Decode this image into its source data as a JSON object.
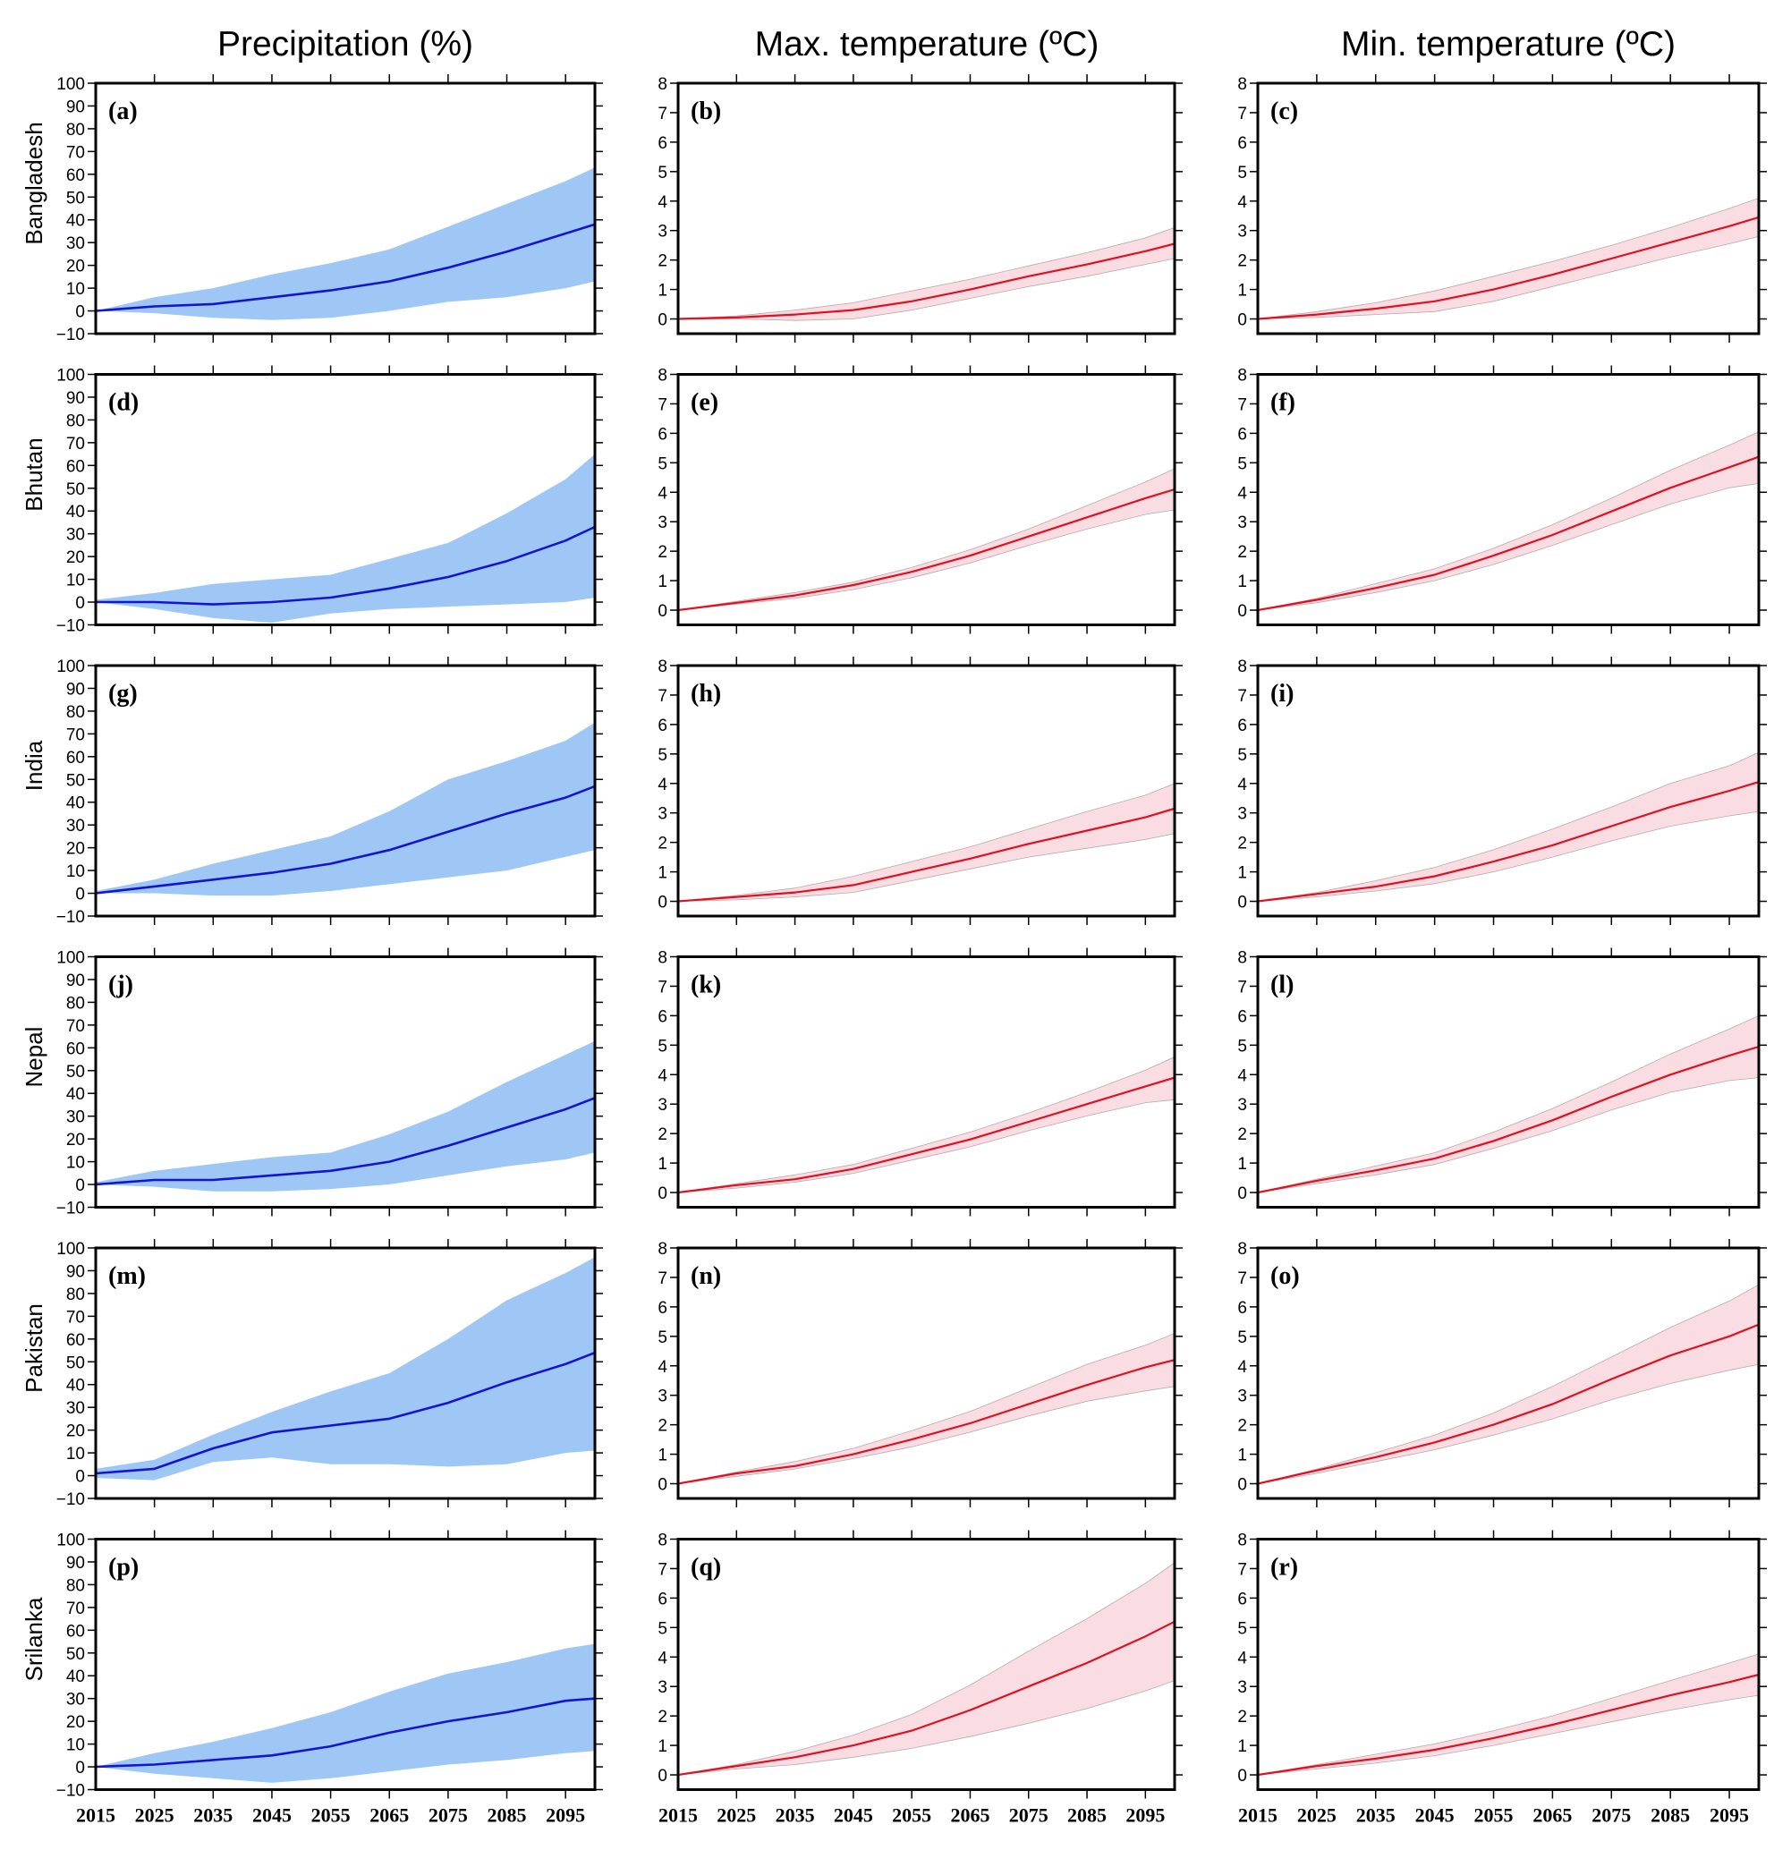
{
  "figure": {
    "column_titles": [
      "Precipitation (%)",
      "Max. temperature (ºC)",
      "Min. temperature (ºC)"
    ],
    "row_labels": [
      "Bangladesh",
      "Bhutan",
      "India",
      "Nepal",
      "Pakistan",
      "Srilanka"
    ],
    "colors": {
      "precip_fill": "#9ec7f6",
      "precip_line": "#1414d2",
      "temp_fill": "#fadce3",
      "temp_edge": "#b9a9ae",
      "temp_line": "#e01020",
      "frame": "#000000"
    }
  },
  "chart_data": {
    "type": "area",
    "layout": "6 rows x 3 columns small multiples",
    "x": [
      2015,
      2025,
      2035,
      2045,
      2055,
      2065,
      2075,
      2085,
      2095,
      2100
    ],
    "xlim": [
      2015,
      2100
    ],
    "xticks": [
      2015,
      2025,
      2035,
      2045,
      2055,
      2065,
      2075,
      2085,
      2095
    ],
    "xtick_labels": [
      "2015",
      "2025",
      "2035",
      "2045",
      "2055",
      "2065",
      "2075",
      "2085",
      "2095"
    ],
    "precip_axis": {
      "ylim": [
        -10,
        100
      ],
      "yticks": [
        -10,
        0,
        10,
        20,
        30,
        40,
        50,
        60,
        70,
        80,
        90,
        100
      ],
      "ytick_labels": [
        "−10",
        "0",
        "10",
        "20",
        "30",
        "40",
        "50",
        "60",
        "70",
        "80",
        "90",
        "100"
      ]
    },
    "temp_axis": {
      "ylim": [
        -0.5,
        8
      ],
      "yticks": [
        0,
        1,
        2,
        3,
        4,
        5,
        6,
        7,
        8
      ],
      "ytick_labels": [
        "0",
        "1",
        "2",
        "3",
        "4",
        "5",
        "6",
        "7",
        "8"
      ]
    },
    "panels": [
      {
        "label": "(a)",
        "country": "Bangladesh",
        "variable": "Precipitation (%)",
        "mean": [
          0,
          2,
          3,
          6,
          9,
          13,
          19,
          26,
          34,
          38
        ],
        "upper": [
          0,
          6,
          10,
          16,
          21,
          27,
          37,
          47,
          57,
          63
        ],
        "lower": [
          0,
          -1,
          -3,
          -4,
          -3,
          0,
          4,
          6,
          10,
          13
        ]
      },
      {
        "label": "(b)",
        "country": "Bangladesh",
        "variable": "Max. temperature (ºC)",
        "mean": [
          0,
          0.05,
          0.15,
          0.3,
          0.6,
          1.0,
          1.45,
          1.85,
          2.3,
          2.55
        ],
        "upper": [
          0,
          0.1,
          0.3,
          0.55,
          0.95,
          1.35,
          1.8,
          2.25,
          2.75,
          3.1
        ],
        "lower": [
          0,
          0,
          -0.05,
          0.0,
          0.3,
          0.7,
          1.1,
          1.45,
          1.85,
          2.05
        ]
      },
      {
        "label": "(c)",
        "country": "Bangladesh",
        "variable": "Min. temperature (ºC)",
        "mean": [
          0,
          0.15,
          0.35,
          0.6,
          1.0,
          1.5,
          2.05,
          2.6,
          3.15,
          3.45
        ],
        "upper": [
          0,
          0.25,
          0.55,
          0.95,
          1.45,
          1.95,
          2.5,
          3.1,
          3.75,
          4.1
        ],
        "lower": [
          0,
          0.05,
          0.15,
          0.25,
          0.6,
          1.1,
          1.6,
          2.1,
          2.55,
          2.8
        ]
      },
      {
        "label": "(d)",
        "country": "Bhutan",
        "variable": "Precipitation (%)",
        "mean": [
          0,
          0,
          -1,
          0,
          2,
          6,
          11,
          18,
          27,
          33
        ],
        "upper": [
          1,
          4,
          8,
          10,
          12,
          19,
          26,
          39,
          54,
          65
        ],
        "lower": [
          0,
          -3,
          -7,
          -9,
          -5,
          -3,
          -2,
          -1,
          0,
          2
        ]
      },
      {
        "label": "(e)",
        "country": "Bhutan",
        "variable": "Max. temperature (ºC)",
        "mean": [
          0,
          0.25,
          0.5,
          0.85,
          1.3,
          1.85,
          2.5,
          3.15,
          3.8,
          4.1
        ],
        "upper": [
          0,
          0.3,
          0.6,
          0.95,
          1.45,
          2.05,
          2.75,
          3.55,
          4.35,
          4.8
        ],
        "lower": [
          0,
          0.2,
          0.4,
          0.7,
          1.1,
          1.6,
          2.2,
          2.75,
          3.25,
          3.4
        ]
      },
      {
        "label": "(f)",
        "country": "Bhutan",
        "variable": "Min. temperature (ºC)",
        "mean": [
          0,
          0.35,
          0.75,
          1.2,
          1.85,
          2.55,
          3.35,
          4.15,
          4.85,
          5.2
        ],
        "upper": [
          0,
          0.4,
          0.9,
          1.4,
          2.1,
          2.9,
          3.8,
          4.75,
          5.6,
          6.05
        ],
        "lower": [
          0,
          0.25,
          0.6,
          1.0,
          1.55,
          2.2,
          2.9,
          3.6,
          4.15,
          4.3
        ]
      },
      {
        "label": "(g)",
        "country": "India",
        "variable": "Precipitation (%)",
        "mean": [
          0,
          3,
          6,
          9,
          13,
          19,
          27,
          35,
          42,
          47
        ],
        "upper": [
          1,
          6,
          13,
          19,
          25,
          36,
          50,
          58,
          67,
          75
        ],
        "lower": [
          0,
          0,
          -1,
          -1,
          1,
          4,
          7,
          10,
          16,
          19
        ]
      },
      {
        "label": "(h)",
        "country": "India",
        "variable": "Max. temperature (ºC)",
        "mean": [
          0,
          0.15,
          0.3,
          0.55,
          1.0,
          1.45,
          1.95,
          2.4,
          2.85,
          3.15
        ],
        "upper": [
          0,
          0.2,
          0.45,
          0.85,
          1.35,
          1.85,
          2.45,
          3.05,
          3.6,
          4.0
        ],
        "lower": [
          0,
          0.05,
          0.15,
          0.3,
          0.7,
          1.1,
          1.5,
          1.8,
          2.1,
          2.3
        ]
      },
      {
        "label": "(i)",
        "country": "India",
        "variable": "Min. temperature (ºC)",
        "mean": [
          0,
          0.25,
          0.5,
          0.85,
          1.35,
          1.9,
          2.55,
          3.2,
          3.75,
          4.05
        ],
        "upper": [
          0,
          0.3,
          0.7,
          1.15,
          1.75,
          2.45,
          3.2,
          4.0,
          4.6,
          5.05
        ],
        "lower": [
          0,
          0.15,
          0.35,
          0.6,
          1.0,
          1.5,
          2.05,
          2.55,
          2.9,
          3.05
        ]
      },
      {
        "label": "(j)",
        "country": "Nepal",
        "variable": "Precipitation (%)",
        "mean": [
          0,
          2,
          2,
          4,
          6,
          10,
          17,
          25,
          33,
          38
        ],
        "upper": [
          1,
          6,
          9,
          12,
          14,
          22,
          32,
          45,
          57,
          63
        ],
        "lower": [
          0,
          -1,
          -3,
          -3,
          -2,
          0,
          4,
          8,
          11,
          14
        ]
      },
      {
        "label": "(k)",
        "country": "Nepal",
        "variable": "Max. temperature (ºC)",
        "mean": [
          0,
          0.25,
          0.45,
          0.8,
          1.3,
          1.8,
          2.4,
          3.0,
          3.6,
          3.9
        ],
        "upper": [
          0,
          0.3,
          0.6,
          0.95,
          1.5,
          2.05,
          2.7,
          3.4,
          4.15,
          4.6
        ],
        "lower": [
          0,
          0.15,
          0.35,
          0.65,
          1.1,
          1.55,
          2.1,
          2.6,
          3.05,
          3.15
        ]
      },
      {
        "label": "(l)",
        "country": "Nepal",
        "variable": "Min. temperature (ºC)",
        "mean": [
          0,
          0.4,
          0.75,
          1.15,
          1.75,
          2.45,
          3.25,
          4.0,
          4.65,
          4.95
        ],
        "upper": [
          0,
          0.45,
          0.9,
          1.35,
          2.05,
          2.85,
          3.75,
          4.7,
          5.55,
          6.0
        ],
        "lower": [
          0,
          0.3,
          0.6,
          0.95,
          1.5,
          2.1,
          2.8,
          3.4,
          3.8,
          3.9
        ]
      },
      {
        "label": "(m)",
        "country": "Pakistan",
        "variable": "Precipitation (%)",
        "mean": [
          1,
          3,
          12,
          19,
          22,
          25,
          32,
          41,
          49,
          54
        ],
        "upper": [
          3,
          7,
          18,
          28,
          37,
          45,
          60,
          77,
          89,
          96
        ],
        "lower": [
          -1,
          -2,
          6,
          8,
          5,
          5,
          4,
          5,
          10,
          11
        ]
      },
      {
        "label": "(n)",
        "country": "Pakistan",
        "variable": "Max. temperature (ºC)",
        "mean": [
          0,
          0.35,
          0.6,
          1.0,
          1.5,
          2.05,
          2.7,
          3.35,
          3.95,
          4.2
        ],
        "upper": [
          0,
          0.4,
          0.75,
          1.2,
          1.8,
          2.45,
          3.25,
          4.05,
          4.7,
          5.1
        ],
        "lower": [
          0,
          0.25,
          0.5,
          0.85,
          1.25,
          1.75,
          2.3,
          2.8,
          3.15,
          3.3
        ]
      },
      {
        "label": "(o)",
        "country": "Pakistan",
        "variable": "Min. temperature (ºC)",
        "mean": [
          0,
          0.45,
          0.9,
          1.4,
          2.0,
          2.7,
          3.55,
          4.35,
          5.0,
          5.4
        ],
        "upper": [
          0,
          0.5,
          1.05,
          1.65,
          2.4,
          3.3,
          4.3,
          5.3,
          6.2,
          6.75
        ],
        "lower": [
          0,
          0.35,
          0.75,
          1.15,
          1.65,
          2.2,
          2.85,
          3.4,
          3.85,
          4.05
        ]
      },
      {
        "label": "(p)",
        "country": "Srilanka",
        "variable": "Precipitation (%)",
        "mean": [
          0,
          1,
          3,
          5,
          9,
          15,
          20,
          24,
          29,
          30
        ],
        "upper": [
          0,
          6,
          11,
          17,
          24,
          33,
          41,
          46,
          52,
          54
        ],
        "lower": [
          0,
          -3,
          -5,
          -7,
          -5,
          -2,
          1,
          3,
          6,
          7
        ]
      },
      {
        "label": "(q)",
        "country": "Srilanka",
        "variable": "Max. temperature (ºC)",
        "mean": [
          0,
          0.3,
          0.6,
          1.0,
          1.5,
          2.2,
          3.0,
          3.8,
          4.7,
          5.2
        ],
        "upper": [
          0,
          0.35,
          0.8,
          1.35,
          2.05,
          3.05,
          4.2,
          5.3,
          6.5,
          7.2
        ],
        "lower": [
          0,
          0.2,
          0.35,
          0.6,
          0.9,
          1.3,
          1.75,
          2.25,
          2.85,
          3.2
        ]
      },
      {
        "label": "(r)",
        "country": "Srilanka",
        "variable": "Min. temperature (ºC)",
        "mean": [
          0,
          0.3,
          0.55,
          0.85,
          1.25,
          1.7,
          2.2,
          2.7,
          3.15,
          3.4
        ],
        "upper": [
          0,
          0.35,
          0.7,
          1.05,
          1.5,
          2.0,
          2.6,
          3.2,
          3.8,
          4.1
        ],
        "lower": [
          0,
          0.2,
          0.4,
          0.65,
          1.0,
          1.4,
          1.8,
          2.2,
          2.55,
          2.7
        ]
      }
    ]
  }
}
